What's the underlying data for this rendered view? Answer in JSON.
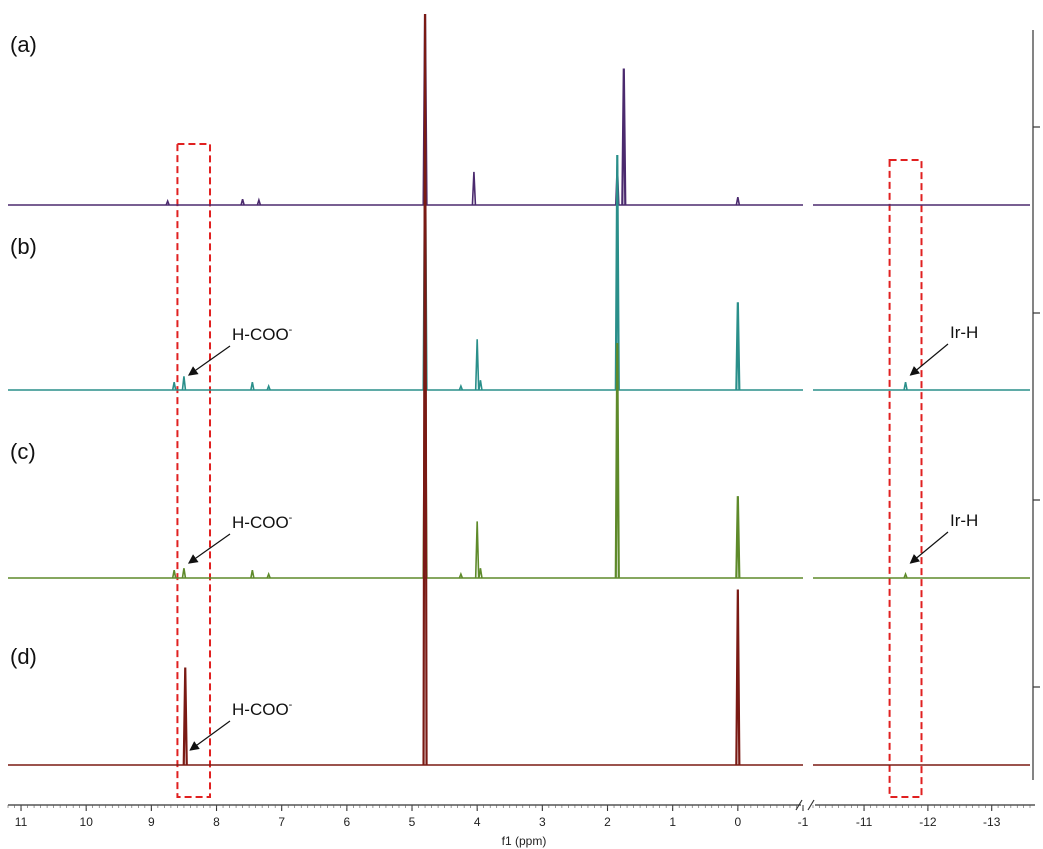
{
  "chart_data": {
    "type": "line",
    "title": "",
    "xlabel": "f1 (ppm)",
    "x_axis_reversed": true,
    "x_ticks_left": [
      "11",
      "10",
      "9",
      "8",
      "7",
      "6",
      "5",
      "4",
      "3",
      "2",
      "1",
      "0",
      "-1"
    ],
    "x_ticks_right": [
      "-11",
      "-12",
      "-13"
    ],
    "xlim_left": [
      11.2,
      -1.0
    ],
    "xlim_right": [
      -10.2,
      -13.6
    ],
    "axis_break_between": [
      -1.0,
      -10.2
    ],
    "grid": false,
    "legend": "none",
    "highlight_boxes": [
      {
        "x_from": 8.6,
        "x_to": 8.1,
        "style": "red-dashed"
      },
      {
        "x_from": -11.4,
        "x_to": -11.9,
        "style": "red-dashed"
      }
    ],
    "series": [
      {
        "panel": "(a)",
        "color": "#4b2a6e",
        "peaks": [
          {
            "x": 8.75,
            "height": 0.02
          },
          {
            "x": 7.6,
            "height": 0.03
          },
          {
            "x": 7.35,
            "height": 0.025
          },
          {
            "x": 4.8,
            "height": 1.0
          },
          {
            "x": 4.05,
            "height": 0.17
          },
          {
            "x": 1.85,
            "height": 0.21
          },
          {
            "x": 1.75,
            "height": 0.7
          },
          {
            "x": 0.0,
            "height": 0.04
          }
        ]
      },
      {
        "panel": "(b)",
        "color": "#2a8f8a",
        "peaks": [
          {
            "x": 8.65,
            "height": 0.04
          },
          {
            "x": 8.5,
            "height": 0.07
          },
          {
            "x": 7.45,
            "height": 0.04
          },
          {
            "x": 7.2,
            "height": 0.02
          },
          {
            "x": 4.8,
            "height": 1.0
          },
          {
            "x": 4.25,
            "height": 0.02
          },
          {
            "x": 4.0,
            "height": 0.26
          },
          {
            "x": 3.95,
            "height": 0.05
          },
          {
            "x": 1.85,
            "height": 1.0
          },
          {
            "x": 0.0,
            "height": 0.45
          },
          {
            "x": -11.65,
            "height": 0.04
          }
        ],
        "annotations": [
          {
            "text": "H-COO",
            "sup": "-",
            "points_to_x": 8.5
          },
          {
            "text": "Ir-H",
            "sup": "",
            "points_to_x": -11.65
          }
        ]
      },
      {
        "panel": "(c)",
        "color": "#5e8a2a",
        "peaks": [
          {
            "x": 8.65,
            "height": 0.04
          },
          {
            "x": 8.5,
            "height": 0.05
          },
          {
            "x": 7.45,
            "height": 0.04
          },
          {
            "x": 7.2,
            "height": 0.02
          },
          {
            "x": 4.8,
            "height": 1.0
          },
          {
            "x": 4.25,
            "height": 0.02
          },
          {
            "x": 4.0,
            "height": 0.29
          },
          {
            "x": 3.95,
            "height": 0.05
          },
          {
            "x": 1.85,
            "height": 1.0
          },
          {
            "x": 0.0,
            "height": 0.42
          },
          {
            "x": -11.65,
            "height": 0.02
          }
        ],
        "annotations": [
          {
            "text": "H-COO",
            "sup": "-",
            "points_to_x": 8.5
          },
          {
            "text": "Ir-H",
            "sup": "",
            "points_to_x": -11.65
          }
        ]
      },
      {
        "panel": "(d)",
        "color": "#7a1a14",
        "peaks": [
          {
            "x": 8.48,
            "height": 0.5
          },
          {
            "x": 4.8,
            "height": 1.0
          },
          {
            "x": 0.0,
            "height": 0.9
          }
        ],
        "annotations": [
          {
            "text": "H-COO",
            "sup": "-",
            "points_to_x": 8.48
          }
        ]
      }
    ]
  }
}
